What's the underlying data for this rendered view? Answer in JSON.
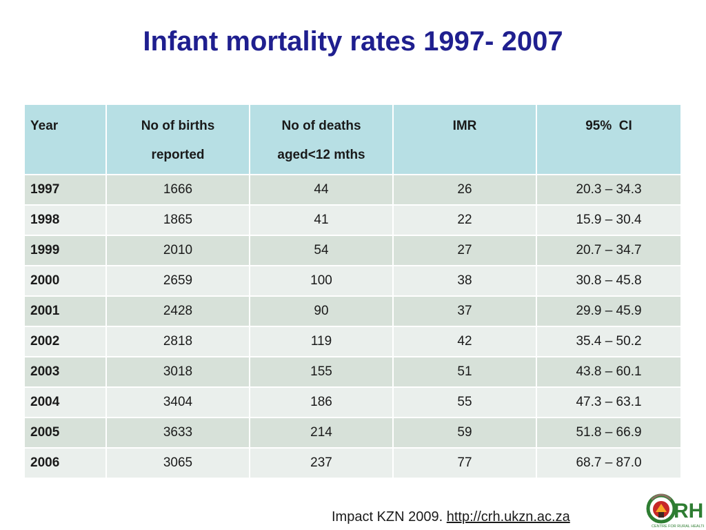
{
  "title": "Infant mortality rates 1997- 2007",
  "table": {
    "headers": {
      "year": "Year",
      "births_line1": "No of births",
      "births_line2": "reported",
      "deaths_line1": "No of deaths",
      "deaths_line2": "aged<12 mths",
      "imr": "IMR",
      "ci": "95%  CI"
    },
    "rows": [
      {
        "year": "1997",
        "births": "1666",
        "deaths": "44",
        "imr": "26",
        "ci": "20.3 – 34.3"
      },
      {
        "year": "1998",
        "births": "1865",
        "deaths": "41",
        "imr": "22",
        "ci": "15.9 – 30.4"
      },
      {
        "year": "1999",
        "births": "2010",
        "deaths": "54",
        "imr": "27",
        "ci": "20.7 – 34.7"
      },
      {
        "year": "2000",
        "births": "2659",
        "deaths": "100",
        "imr": "38",
        "ci": "30.8 – 45.8"
      },
      {
        "year": "2001",
        "births": "2428",
        "deaths": "90",
        "imr": "37",
        "ci": "29.9 – 45.9"
      },
      {
        "year": "2002",
        "births": "2818",
        "deaths": "119",
        "imr": "42",
        "ci": "35.4 – 50.2"
      },
      {
        "year": "2003",
        "births": "3018",
        "deaths": "155",
        "imr": "51",
        "ci": "43.8 – 60.1"
      },
      {
        "year": "2004",
        "births": "3404",
        "deaths": "186",
        "imr": "55",
        "ci": "47.3 – 63.1"
      },
      {
        "year": "2005",
        "births": "3633",
        "deaths": "214",
        "imr": "59",
        "ci": "51.8 – 66.9"
      },
      {
        "year": "2006",
        "births": "3065",
        "deaths": "237",
        "imr": "77",
        "ci": "68.7 – 87.0"
      }
    ]
  },
  "footer": {
    "source": "Impact KZN 2009.",
    "link": "http://crh.ukzn.ac.za"
  },
  "logo": {
    "text": "CRH",
    "subtitle": "CENTRE FOR RURAL HEALTH"
  },
  "colors": {
    "title": "#1f1f8f",
    "header_bg": "#b7dfe4",
    "row_odd": "#d7e1d9",
    "row_even": "#eaefec",
    "logo_green": "#2e7d32"
  }
}
